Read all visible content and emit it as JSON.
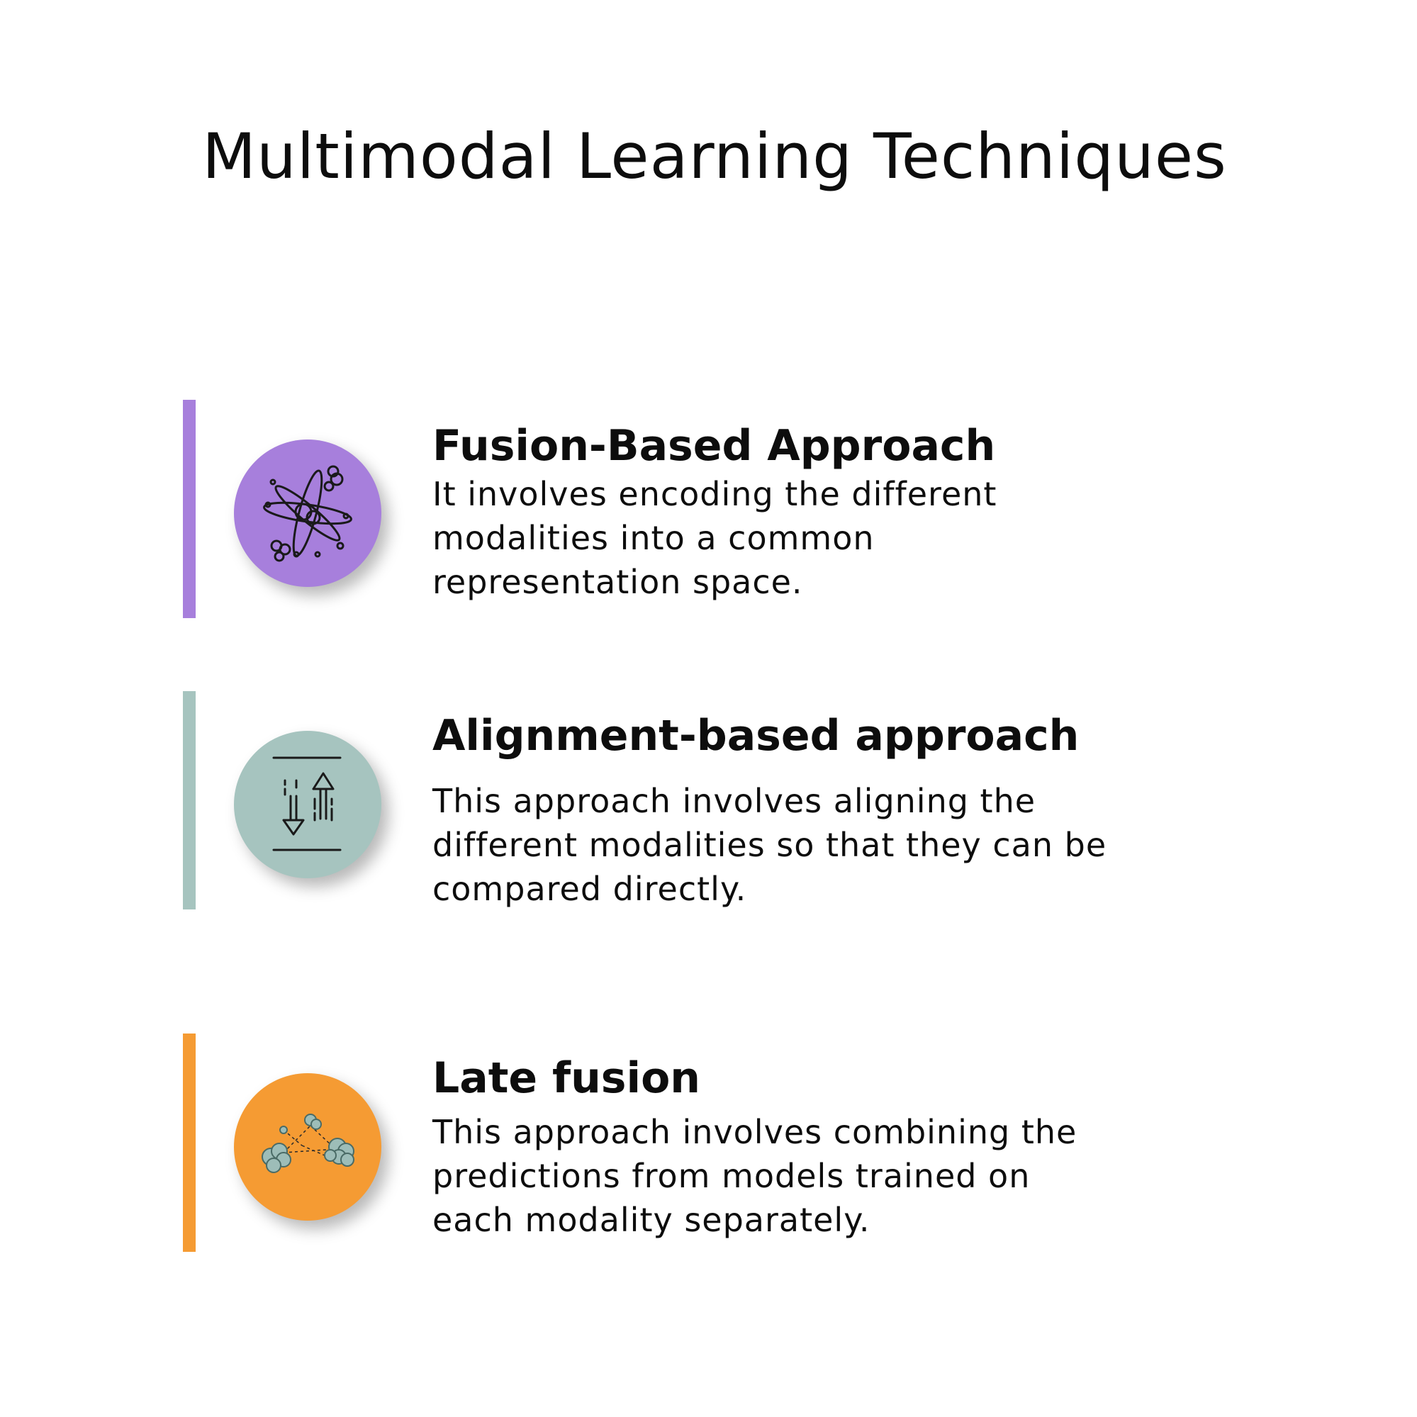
{
  "title": "Multimodal Learning Techniques",
  "colors": {
    "fusion": "#a77fdc",
    "alignment": "#a6c4bf",
    "late_fusion": "#f59b33",
    "icon_stroke": "#1a1a1a",
    "cloud_fill": "#9dbdb8"
  },
  "techniques": [
    {
      "heading": "Fusion-Based Approach",
      "icon": "atom-fusion-icon",
      "description_lines": [
        "It involves encoding the different",
        "modalities into a common",
        "representation space."
      ]
    },
    {
      "heading": "Alignment-based approach",
      "icon": "align-arrows-icon",
      "description_lines": [
        "This approach involves aligning the",
        "different modalities so that they can be",
        "compared directly."
      ]
    },
    {
      "heading": "Late fusion",
      "icon": "merging-clouds-icon",
      "description_lines": [
        "This approach involves combining the",
        "predictions from models trained on",
        "each modality separately."
      ]
    }
  ]
}
